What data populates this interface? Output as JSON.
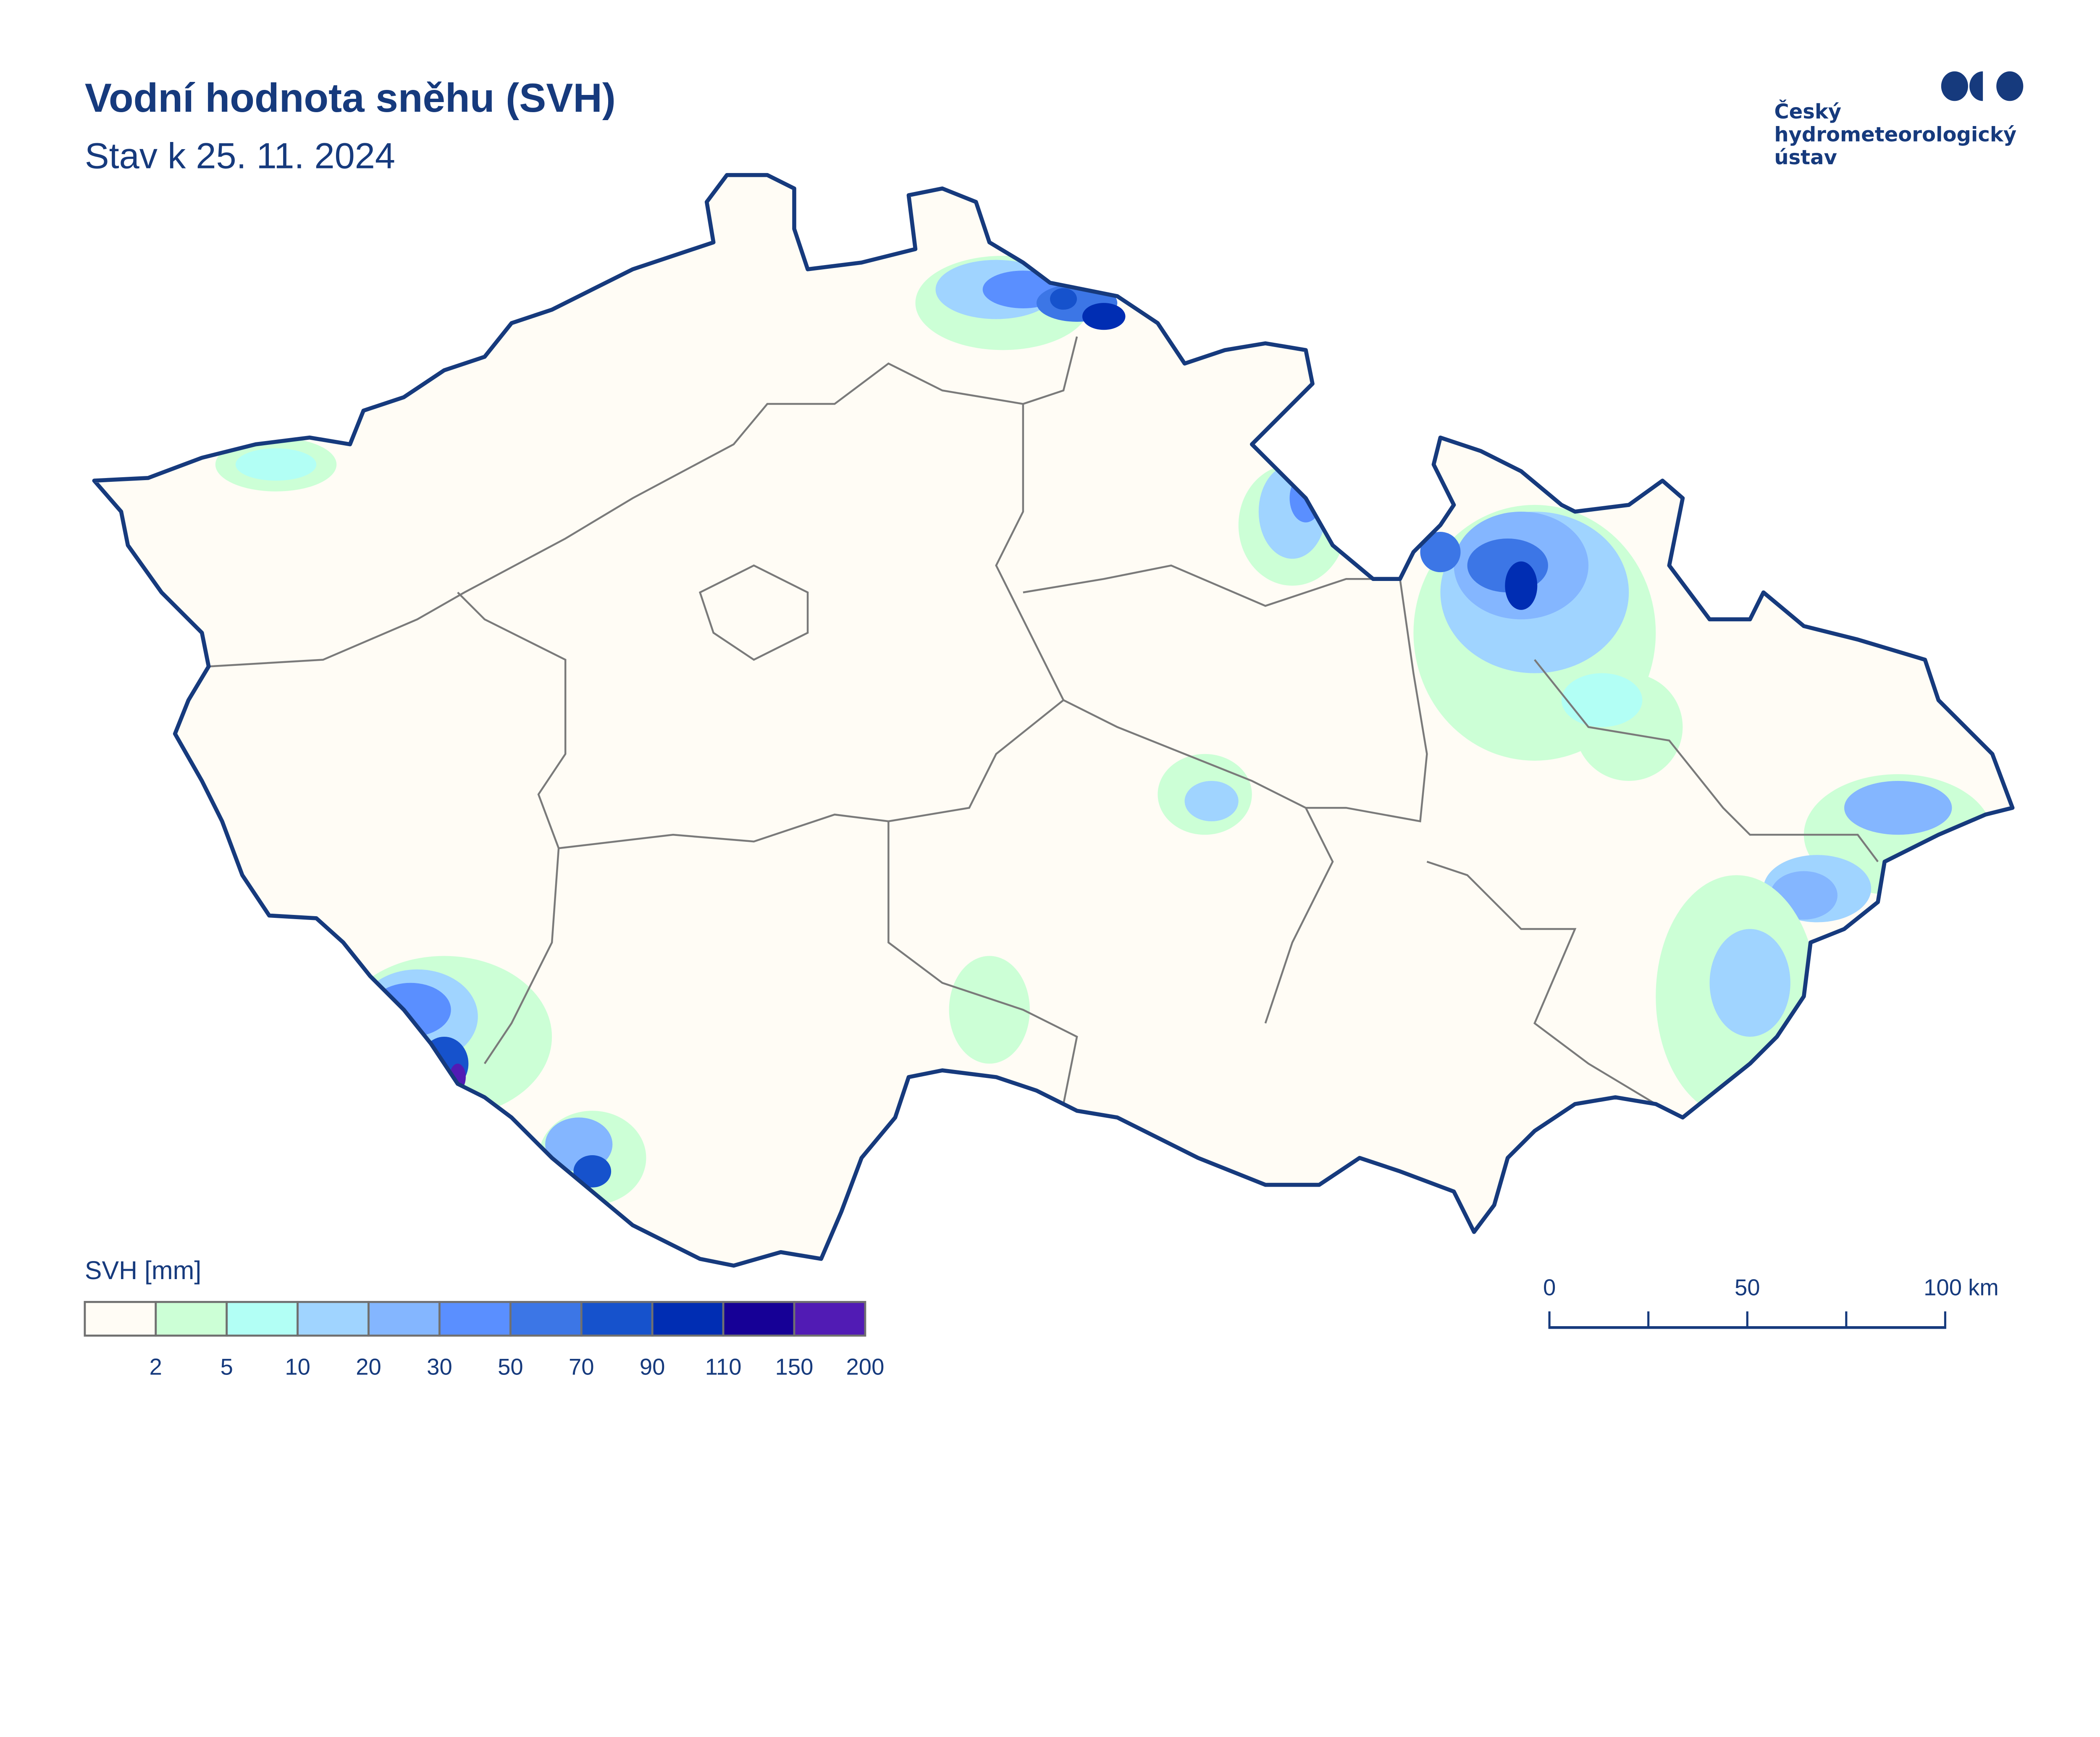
{
  "header": {
    "title": "Vodní hodnota sněhu (SVH)",
    "subtitle": "Stav k 25. 11. 2024"
  },
  "logo": {
    "lines": [
      "Český",
      "hydrometeorologický",
      "ústav"
    ],
    "color": "#163a7d"
  },
  "legend": {
    "title": "SVH [mm]",
    "classes": [
      {
        "color": "#fffcf5",
        "upper": "2"
      },
      {
        "color": "#ccffd6",
        "upper": "5"
      },
      {
        "color": "#b2fff5",
        "upper": "10"
      },
      {
        "color": "#a0d4ff",
        "upper": "20"
      },
      {
        "color": "#84b6ff",
        "upper": "30"
      },
      {
        "color": "#5a8fff",
        "upper": "50"
      },
      {
        "color": "#3c76e6",
        "upper": "70"
      },
      {
        "color": "#1652cc",
        "upper": "90"
      },
      {
        "color": "#002db3",
        "upper": "110"
      },
      {
        "color": "#160096",
        "upper": "150"
      },
      {
        "color": "#511bb4",
        "upper": "200"
      }
    ],
    "border_color": "#707070"
  },
  "scale_bar": {
    "labels": [
      "0",
      "50",
      "100 km"
    ]
  },
  "map": {
    "border_color": "#163a7d",
    "land_color": "#fffcf5",
    "region_border_color": "#7a7a7a",
    "river_color": "#6cc3d6"
  }
}
